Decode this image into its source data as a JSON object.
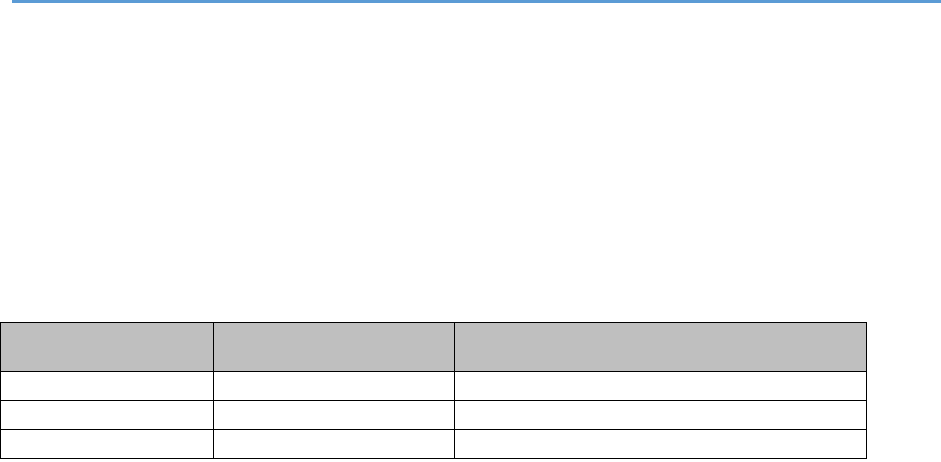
{
  "colors": {
    "top_rule": "#5b9bd5",
    "header_fill": "#bfbfbf",
    "border": "#000000"
  },
  "table": {
    "headers": [
      "",
      "",
      ""
    ],
    "rows": [
      [
        "",
        "",
        ""
      ],
      [
        "",
        "",
        ""
      ],
      [
        "",
        "",
        ""
      ]
    ]
  }
}
